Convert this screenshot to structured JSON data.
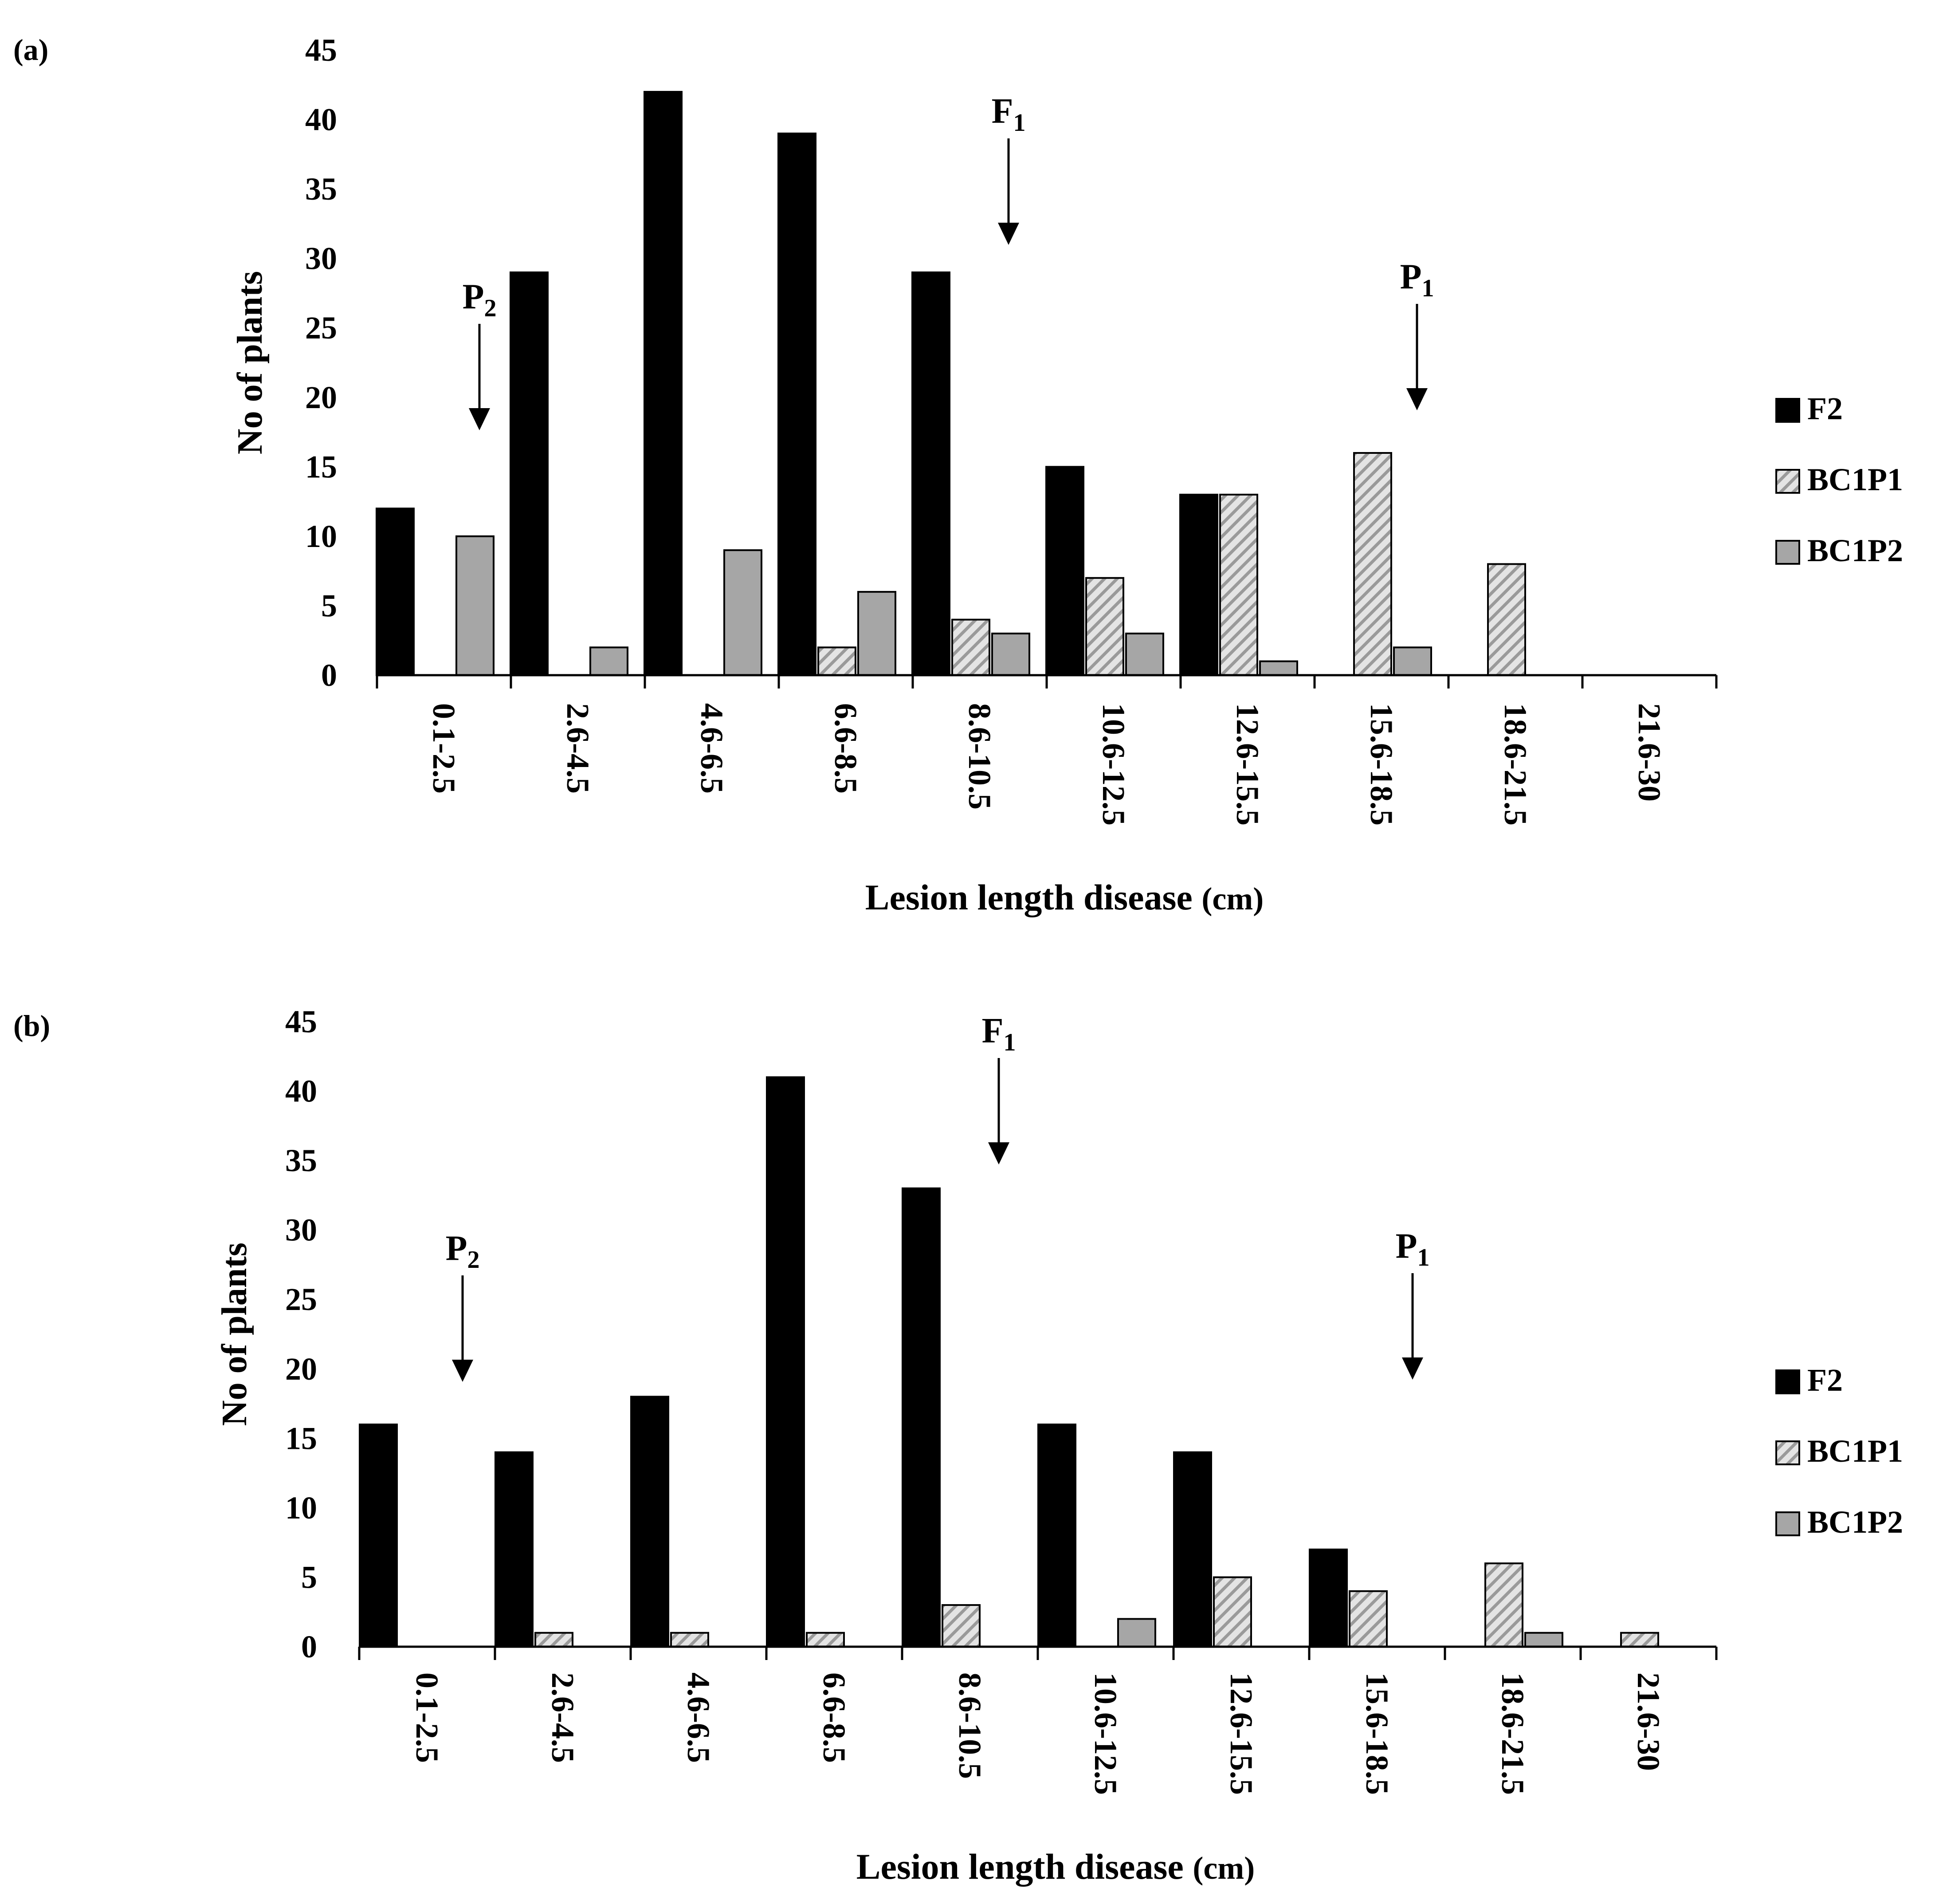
{
  "colors": {
    "F2": "#000000",
    "BC1P1_fill": "#e4e4e4",
    "BC1P1_stripe": "#9a9a9a",
    "BC1P2": "#a6a6a6",
    "outline": "#000000"
  },
  "chart_data": [
    {
      "panel_label": "(a)",
      "type": "bar",
      "categories": [
        "0.1-2.5",
        "2.6-4.5",
        "4.6-6.5",
        "6.6-8.5",
        "8.6-10.5",
        "10.6-12.5",
        "12.6-15.5",
        "15.6-18.5",
        "18.6-21.5",
        "21.6-30"
      ],
      "series": [
        {
          "name": "F2",
          "values": [
            12,
            29,
            42,
            39,
            29,
            15,
            13,
            0,
            0,
            0
          ]
        },
        {
          "name": "BC1P1",
          "values": [
            0,
            0,
            0,
            2,
            4,
            7,
            13,
            16,
            8,
            0
          ]
        },
        {
          "name": "BC1P2",
          "values": [
            10,
            2,
            9,
            6,
            3,
            3,
            1,
            2,
            0,
            0
          ]
        }
      ],
      "yticks": [
        "0",
        "5",
        "10",
        "15",
        "20",
        "25",
        "30",
        "35",
        "40",
        "45"
      ],
      "ylim": [
        0,
        45
      ],
      "ylabel": "No of plants",
      "xlabel": "Lesion length disease",
      "xlabel_unit": "(cm)",
      "annotations": [
        {
          "label": "P",
          "sub": "2",
          "category_index": 0
        },
        {
          "label": "F",
          "sub": "1",
          "category_index": 4
        },
        {
          "label": "P",
          "sub": "1",
          "category_index": 7
        }
      ],
      "legend": [
        "F2",
        "BC1P1",
        "BC1P2"
      ]
    },
    {
      "panel_label": "(b)",
      "type": "bar",
      "categories": [
        "0.1-2.5",
        "2.6-4.5",
        "4.6-6.5",
        "6.6-8.5",
        "8.6-10.5",
        "10.6-12.5",
        "12.6-15.5",
        "15.6-18.5",
        "18.6-21.5",
        "21.6-30"
      ],
      "series": [
        {
          "name": "F2",
          "values": [
            16,
            14,
            18,
            41,
            33,
            16,
            14,
            7,
            0,
            0
          ]
        },
        {
          "name": "BC1P1",
          "values": [
            0,
            1,
            1,
            1,
            3,
            0,
            5,
            4,
            6,
            1
          ]
        },
        {
          "name": "BC1P2",
          "values": [
            0,
            0,
            0,
            0,
            0,
            2,
            0,
            0,
            1,
            0
          ]
        }
      ],
      "yticks": [
        "0",
        "5",
        "10",
        "15",
        "20",
        "25",
        "30",
        "35",
        "40",
        "45"
      ],
      "ylim": [
        0,
        45
      ],
      "ylabel": "No of plants",
      "xlabel": "Lesion length disease",
      "xlabel_unit": "(cm)",
      "annotations": [
        {
          "label": "P",
          "sub": "2",
          "category_index": 0
        },
        {
          "label": "F",
          "sub": "1",
          "category_index": 4
        },
        {
          "label": "P",
          "sub": "1",
          "category_index": 7
        }
      ],
      "legend": [
        "F2",
        "BC1P1",
        "BC1P2"
      ]
    }
  ]
}
